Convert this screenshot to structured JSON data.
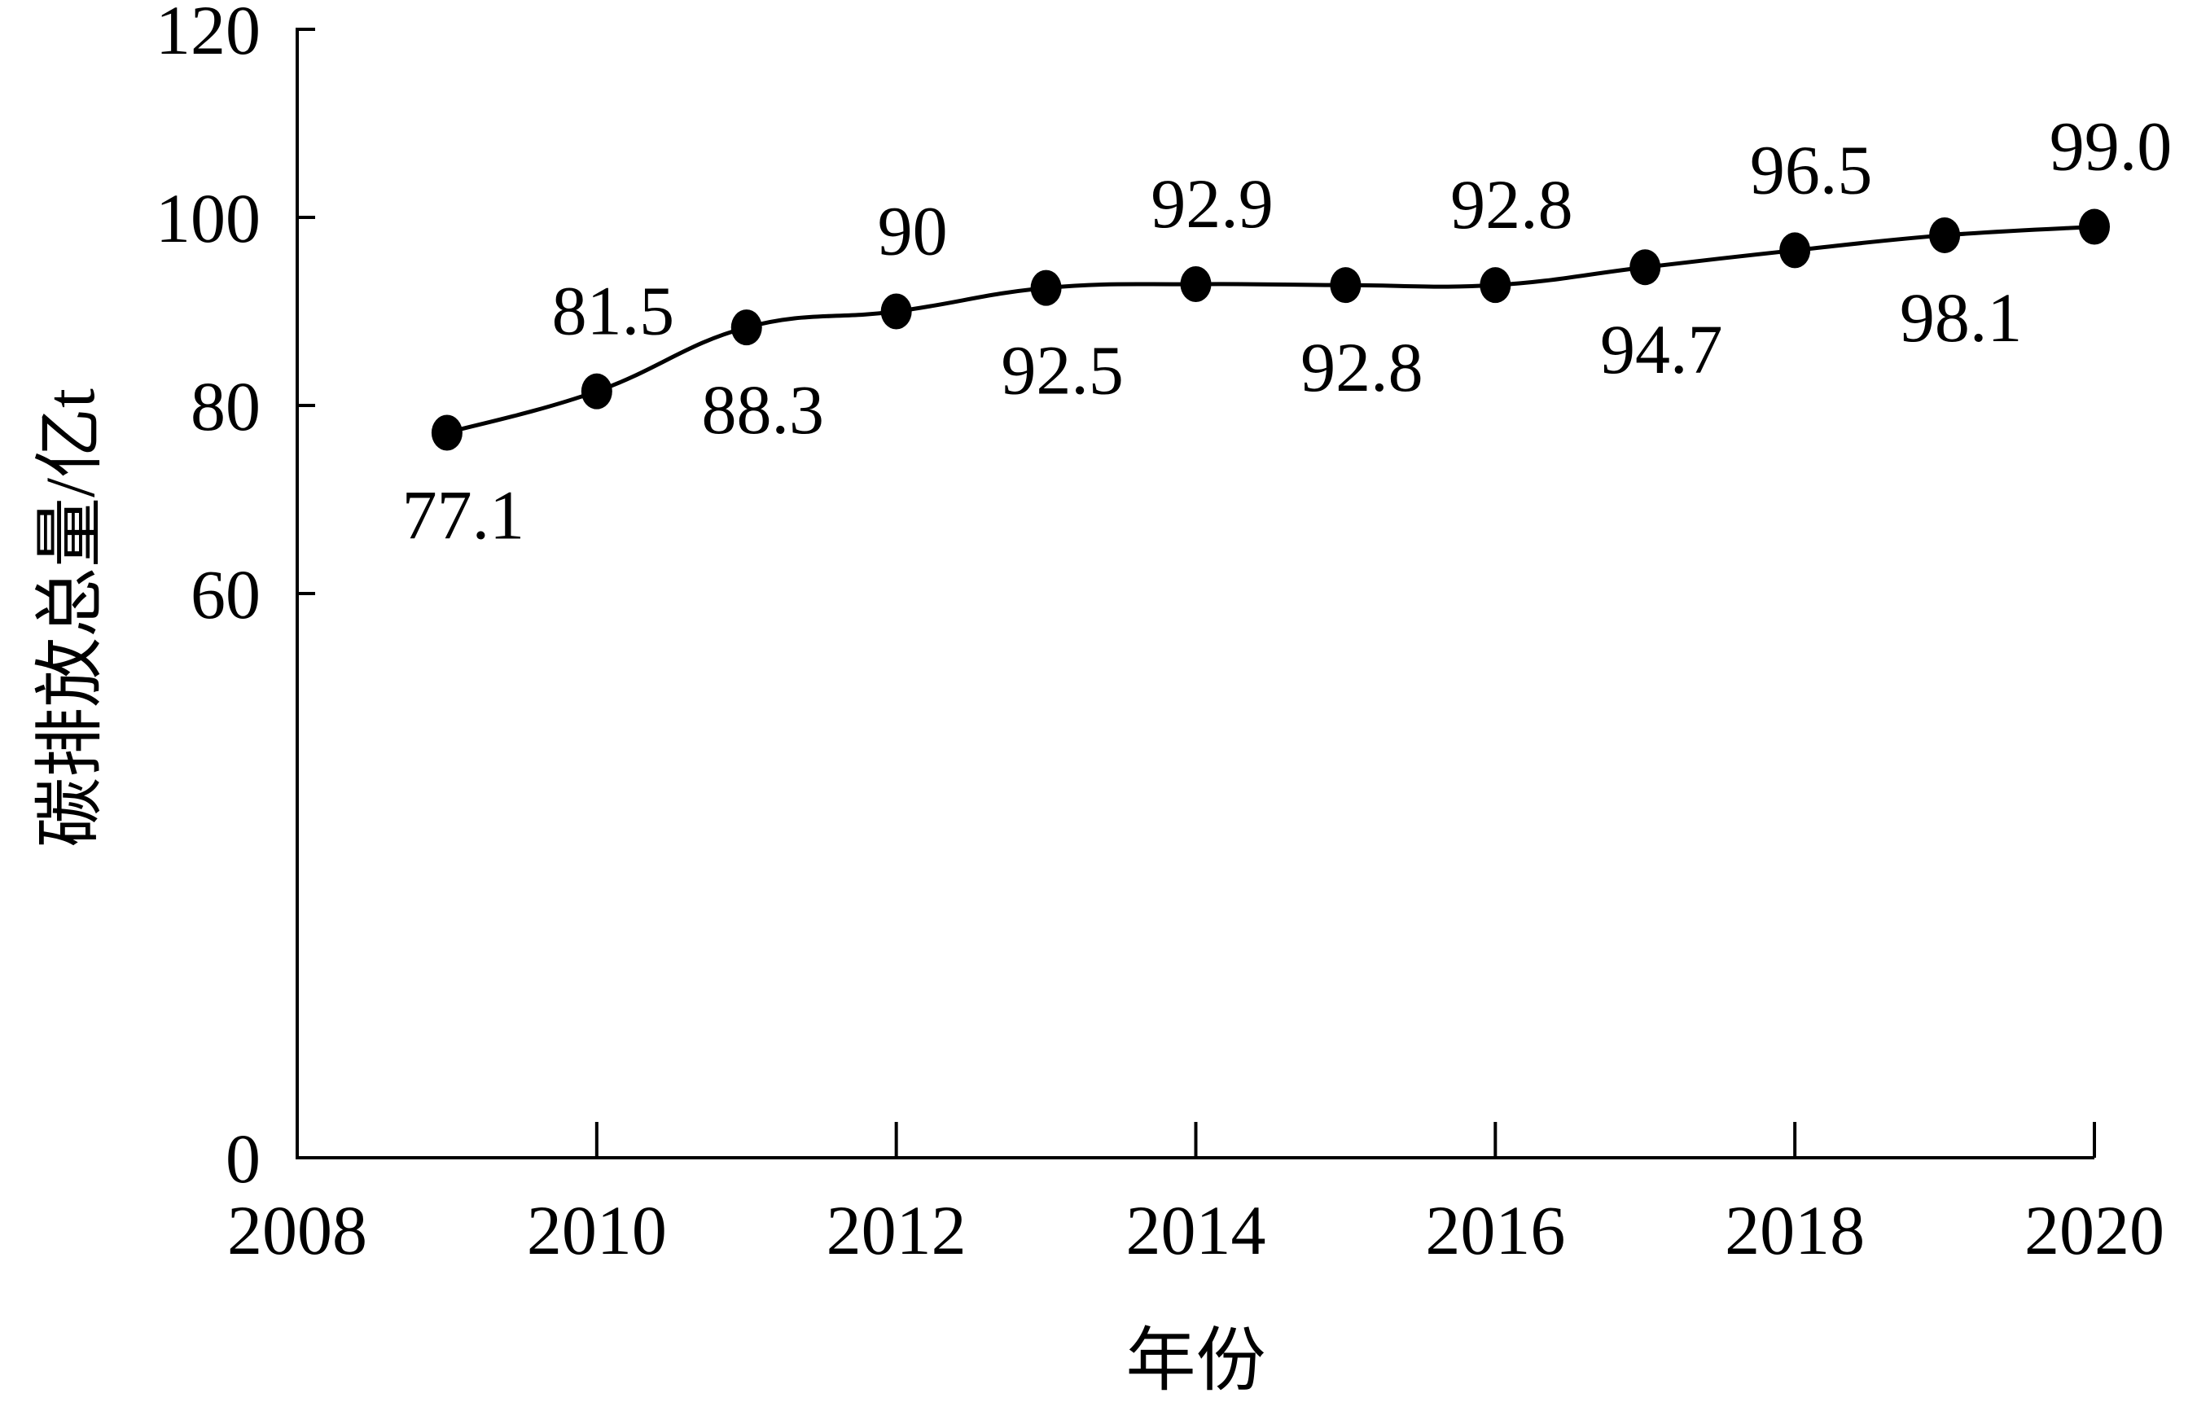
{
  "chart_data": {
    "type": "line",
    "title": "",
    "xlabel": "年份",
    "ylabel": "碳排放总量/亿t",
    "xlim": [
      2008,
      2020
    ],
    "ylim": [
      0,
      120
    ],
    "x_ticks": [
      "2008",
      "2010",
      "2012",
      "2014",
      "2016",
      "2018",
      "2020"
    ],
    "y_ticks": [
      "0",
      "60",
      "80",
      "100",
      "120"
    ],
    "grid": false,
    "legend": "none",
    "series": [
      {
        "x": [
          2009,
          2010,
          2011,
          2012,
          2013,
          2014,
          2015,
          2016,
          2017,
          2018,
          2019,
          2020
        ],
        "values": [
          77.1,
          81.5,
          88.3,
          90,
          92.5,
          92.9,
          92.8,
          92.8,
          94.7,
          96.5,
          98.1,
          99.0
        ],
        "labels": [
          "77.1",
          "81.5",
          "88.3",
          "90",
          "92.5",
          "92.9",
          "92.8",
          "92.8",
          "94.7",
          "96.5",
          "98.1",
          "99.0"
        ],
        "color": "#000000"
      }
    ]
  }
}
